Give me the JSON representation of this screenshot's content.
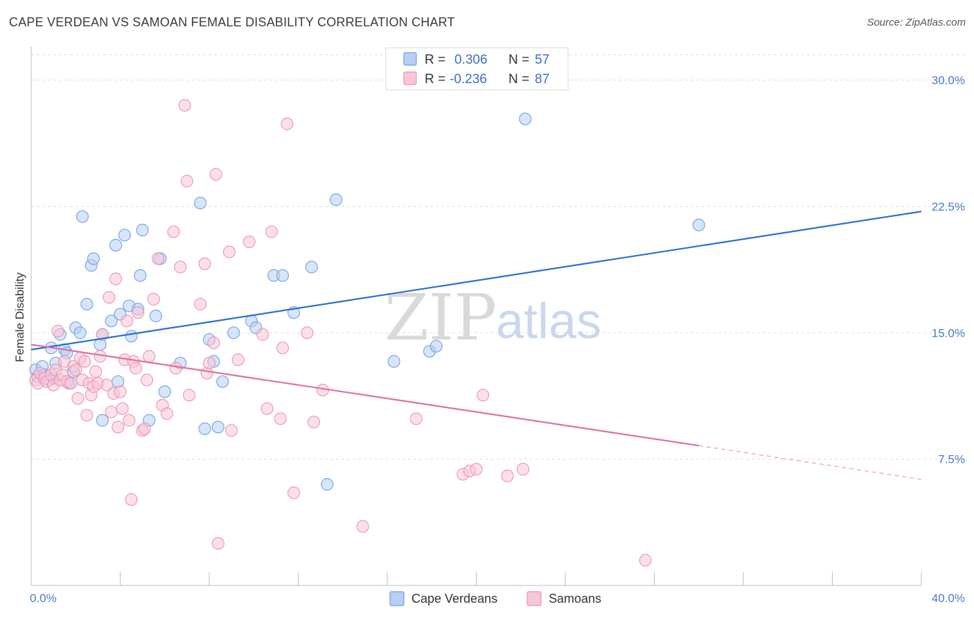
{
  "header": {
    "title": "CAPE VERDEAN VS SAMOAN FEMALE DISABILITY CORRELATION CHART",
    "source": "Source: ZipAtlas.com"
  },
  "watermark": {
    "zip": "ZIP",
    "atlas": "atlas"
  },
  "chart_data": {
    "type": "scatter",
    "title": "CAPE VERDEAN VS SAMOAN FEMALE DISABILITY CORRELATION CHART",
    "xlabel": "",
    "ylabel": "Female Disability",
    "xlim": [
      0,
      40
    ],
    "ylim": [
      0,
      32
    ],
    "x_tick_labels": {
      "min": "0.0%",
      "max": "40.0%"
    },
    "y_ticks": [
      {
        "value": 7.5,
        "label": "7.5%"
      },
      {
        "value": 15.0,
        "label": "15.0%"
      },
      {
        "value": 22.5,
        "label": "22.5%"
      },
      {
        "value": 30.0,
        "label": "30.0%"
      }
    ],
    "grid": true,
    "legend_position": "top-center",
    "stats": [
      {
        "r_label": "R =",
        "r_value": "0.306",
        "n_label": "N =",
        "n_value": "57"
      },
      {
        "r_label": "R =",
        "r_value": "-0.236",
        "n_label": "N =",
        "n_value": "87"
      }
    ],
    "series": [
      {
        "name": "Cape Verdeans",
        "color": "#6d9ee3",
        "fill": "#b7cff2",
        "line_color": "#2a6fd1",
        "trend": {
          "x0": 0,
          "y0": 14.0,
          "x1": 40,
          "y1": 22.2
        },
        "points": [
          [
            0.2,
            12.8
          ],
          [
            0.3,
            12.4
          ],
          [
            0.5,
            13.0
          ],
          [
            0.6,
            12.5
          ],
          [
            0.8,
            12.2
          ],
          [
            0.9,
            14.1
          ],
          [
            1.0,
            12.3
          ],
          [
            1.1,
            13.2
          ],
          [
            1.3,
            14.9
          ],
          [
            1.5,
            14.0
          ],
          [
            1.6,
            13.8
          ],
          [
            1.7,
            12.0
          ],
          [
            1.9,
            12.7
          ],
          [
            2.0,
            15.3
          ],
          [
            2.2,
            15.0
          ],
          [
            2.3,
            21.9
          ],
          [
            2.5,
            16.7
          ],
          [
            2.7,
            19.0
          ],
          [
            2.8,
            19.4
          ],
          [
            3.1,
            14.3
          ],
          [
            3.2,
            14.9
          ],
          [
            3.2,
            9.8
          ],
          [
            3.6,
            15.7
          ],
          [
            3.8,
            20.2
          ],
          [
            3.9,
            12.1
          ],
          [
            4.0,
            16.1
          ],
          [
            4.2,
            20.8
          ],
          [
            4.4,
            16.6
          ],
          [
            4.5,
            14.8
          ],
          [
            4.8,
            16.4
          ],
          [
            4.9,
            18.4
          ],
          [
            5.0,
            21.1
          ],
          [
            5.3,
            9.8
          ],
          [
            5.6,
            16.0
          ],
          [
            5.8,
            19.4
          ],
          [
            6.0,
            11.5
          ],
          [
            6.7,
            13.2
          ],
          [
            7.6,
            22.7
          ],
          [
            7.8,
            9.3
          ],
          [
            8.0,
            14.6
          ],
          [
            8.2,
            13.3
          ],
          [
            8.4,
            9.4
          ],
          [
            8.6,
            12.1
          ],
          [
            9.1,
            15.0
          ],
          [
            9.9,
            15.7
          ],
          [
            10.1,
            15.3
          ],
          [
            10.9,
            18.4
          ],
          [
            11.3,
            18.4
          ],
          [
            11.8,
            16.2
          ],
          [
            12.6,
            18.9
          ],
          [
            13.3,
            6.0
          ],
          [
            13.7,
            22.9
          ],
          [
            16.3,
            13.3
          ],
          [
            17.9,
            13.9
          ],
          [
            18.2,
            14.2
          ],
          [
            22.2,
            27.7
          ],
          [
            30.0,
            21.4
          ]
        ]
      },
      {
        "name": "Samoans",
        "color": "#ee90ae",
        "fill": "#f8c6d6",
        "line_color": "#e26f9a",
        "trend": {
          "x0": 0,
          "y0": 14.3,
          "x1": 30.0,
          "y1": 8.3
        },
        "trend_dashed_to": {
          "x": 40,
          "y": 6.3
        },
        "points": [
          [
            0.2,
            12.2
          ],
          [
            0.3,
            12.0
          ],
          [
            0.4,
            12.6
          ],
          [
            0.6,
            12.3
          ],
          [
            0.7,
            12.1
          ],
          [
            0.9,
            12.5
          ],
          [
            1.0,
            11.9
          ],
          [
            1.1,
            12.8
          ],
          [
            1.2,
            15.1
          ],
          [
            1.3,
            12.2
          ],
          [
            1.4,
            12.5
          ],
          [
            1.5,
            13.3
          ],
          [
            1.6,
            12.1
          ],
          [
            1.8,
            12.0
          ],
          [
            1.9,
            13.0
          ],
          [
            2.0,
            12.8
          ],
          [
            2.1,
            11.1
          ],
          [
            2.2,
            13.5
          ],
          [
            2.3,
            12.2
          ],
          [
            2.4,
            13.3
          ],
          [
            2.5,
            10.1
          ],
          [
            2.6,
            12.0
          ],
          [
            2.7,
            11.3
          ],
          [
            2.8,
            11.8
          ],
          [
            2.9,
            12.7
          ],
          [
            3.0,
            12.0
          ],
          [
            3.1,
            13.6
          ],
          [
            3.2,
            14.9
          ],
          [
            3.4,
            11.9
          ],
          [
            3.5,
            17.1
          ],
          [
            3.6,
            10.3
          ],
          [
            3.7,
            11.4
          ],
          [
            3.8,
            18.2
          ],
          [
            3.9,
            9.4
          ],
          [
            4.0,
            11.5
          ],
          [
            4.1,
            10.5
          ],
          [
            4.2,
            13.4
          ],
          [
            4.3,
            15.7
          ],
          [
            4.4,
            9.8
          ],
          [
            4.5,
            5.1
          ],
          [
            4.6,
            13.3
          ],
          [
            4.7,
            12.9
          ],
          [
            4.8,
            16.2
          ],
          [
            5.0,
            9.2
          ],
          [
            5.1,
            9.3
          ],
          [
            5.2,
            12.2
          ],
          [
            5.3,
            13.6
          ],
          [
            5.5,
            17.0
          ],
          [
            5.7,
            19.4
          ],
          [
            5.9,
            10.7
          ],
          [
            6.1,
            10.2
          ],
          [
            6.4,
            21.0
          ],
          [
            6.5,
            12.9
          ],
          [
            6.7,
            18.9
          ],
          [
            6.9,
            28.5
          ],
          [
            7.0,
            24.0
          ],
          [
            7.1,
            11.3
          ],
          [
            7.6,
            16.7
          ],
          [
            7.8,
            19.1
          ],
          [
            7.9,
            12.6
          ],
          [
            8.0,
            13.2
          ],
          [
            8.2,
            14.4
          ],
          [
            8.3,
            24.4
          ],
          [
            8.4,
            2.5
          ],
          [
            8.9,
            19.8
          ],
          [
            9.0,
            9.2
          ],
          [
            9.3,
            13.4
          ],
          [
            9.8,
            20.4
          ],
          [
            10.4,
            14.9
          ],
          [
            10.6,
            10.5
          ],
          [
            10.8,
            21.0
          ],
          [
            11.2,
            9.9
          ],
          [
            11.3,
            14.1
          ],
          [
            11.5,
            27.4
          ],
          [
            11.8,
            5.5
          ],
          [
            12.4,
            15.0
          ],
          [
            12.7,
            9.7
          ],
          [
            13.1,
            11.6
          ],
          [
            14.9,
            3.5
          ],
          [
            17.3,
            9.9
          ],
          [
            19.4,
            6.6
          ],
          [
            19.7,
            6.8
          ],
          [
            20.3,
            11.3
          ],
          [
            21.4,
            6.5
          ],
          [
            22.1,
            6.9
          ],
          [
            27.6,
            1.5
          ],
          [
            20.0,
            6.9
          ]
        ]
      }
    ]
  },
  "legend": {
    "items": [
      {
        "label": "Cape Verdeans"
      },
      {
        "label": "Samoans"
      }
    ]
  }
}
